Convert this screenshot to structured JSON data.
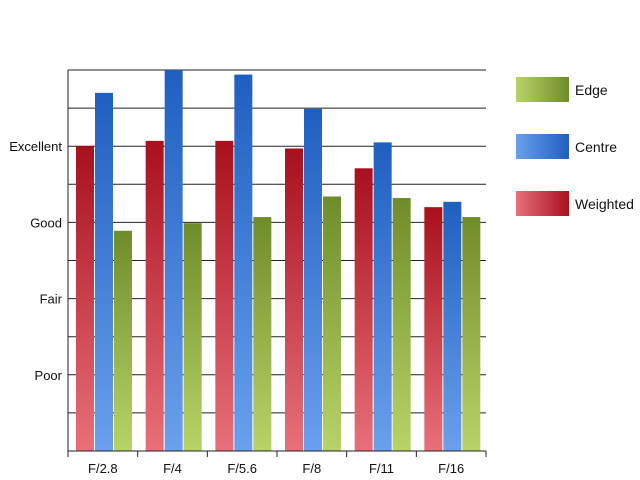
{
  "chart_data": {
    "type": "bar",
    "title": "",
    "xlabel": "",
    "ylabel": "",
    "categories": [
      "F/2.8",
      "F/4",
      "F/5.6",
      "F/8",
      "F/11",
      "F/16"
    ],
    "y_tick_labels": [
      {
        "label": "Poor",
        "value": 1
      },
      {
        "label": "Fair",
        "value": 2
      },
      {
        "label": "Good",
        "value": 3
      },
      {
        "label": "Excellent",
        "value": 4
      }
    ],
    "ylim": [
      0,
      5
    ],
    "grid": true,
    "legend_position": "right",
    "series": [
      {
        "name": "Weighted",
        "color_dark": "#a8101c",
        "color_light": "#e8707a",
        "values": [
          4.0,
          4.07,
          4.07,
          3.97,
          3.71,
          3.2
        ]
      },
      {
        "name": "Centre",
        "color_dark": "#1f5fc0",
        "color_light": "#6aa0ec",
        "values": [
          4.7,
          5.0,
          4.94,
          4.49,
          4.05,
          3.27
        ]
      },
      {
        "name": "Edge",
        "color_dark": "#6f8c2a",
        "color_light": "#b8d468",
        "values": [
          2.89,
          2.99,
          3.07,
          3.34,
          3.32,
          3.07
        ]
      }
    ],
    "legend_order": [
      "Edge",
      "Centre",
      "Weighted"
    ]
  }
}
